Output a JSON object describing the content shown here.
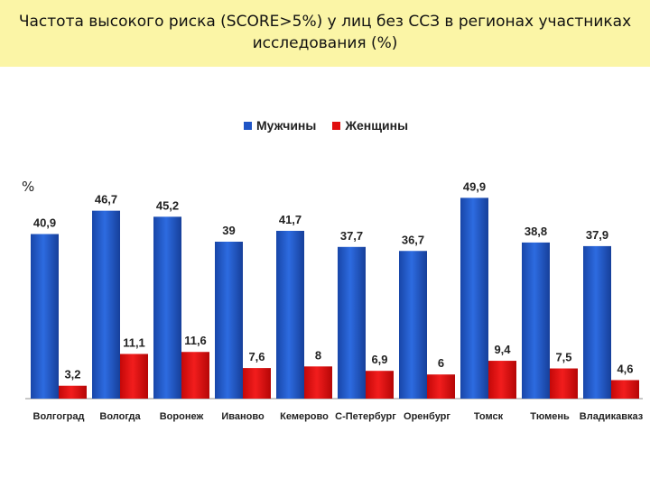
{
  "title": "Частота высокого риска (SCORE>5%) у лиц без ССЗ в регионах участниках исследования (%)",
  "unit_label": "%",
  "colors": {
    "men": "#1f55c6",
    "women": "#e00f0f",
    "title_bg": "#fbf5a6"
  },
  "chart_data": {
    "type": "bar",
    "categories": [
      "Волгоград",
      "Вологда",
      "Воронеж",
      "Иваново",
      "Кемерово",
      "С-Петербург",
      "Оренбург",
      "Томск",
      "Тюмень",
      "Владикавказ"
    ],
    "series": [
      {
        "name": "Мужчины",
        "values": [
          40.9,
          46.7,
          45.2,
          39,
          41.7,
          37.7,
          36.7,
          49.9,
          38.8,
          37.9
        ],
        "labels": [
          "40,9",
          "46,7",
          "45,2",
          "39",
          "41,7",
          "37,7",
          "36,7",
          "49,9",
          "38,8",
          "37,9"
        ]
      },
      {
        "name": "Женщины",
        "values": [
          3.2,
          11.1,
          11.6,
          7.6,
          8,
          6.9,
          6,
          9.4,
          7.5,
          4.6
        ],
        "labels": [
          "3,2",
          "11,1",
          "11,6",
          "7,6",
          "8",
          "6,9",
          "6",
          "9,4",
          "7,5",
          "4,6"
        ]
      }
    ],
    "ylim": [
      0,
      52
    ],
    "legend": "top-center",
    "grid": false
  }
}
